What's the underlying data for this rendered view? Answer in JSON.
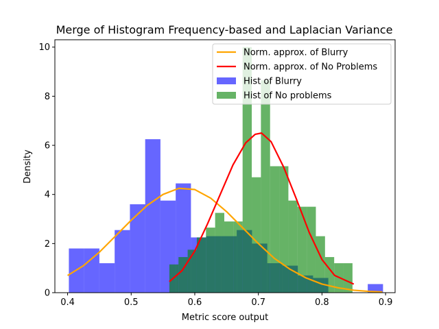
{
  "chart_data": {
    "type": "histogram",
    "title": "Merge of Histogram Frequency-based and Laplacian Variance",
    "xlabel": "Metric score output",
    "ylabel": "Density",
    "xlim": [
      0.38,
      0.915
    ],
    "ylim": [
      0,
      10.3
    ],
    "xticks": [
      0.4,
      0.5,
      0.6,
      0.7,
      0.8,
      0.9
    ],
    "yticks": [
      0,
      2,
      4,
      6,
      8,
      10
    ],
    "grid": false,
    "legend_placement": "top-right",
    "histograms": [
      {
        "name": "Hist of Blurry",
        "color": "#0000ff",
        "opacity": 0.6,
        "bin_width": 0.024,
        "bins": [
          {
            "x": 0.402,
            "h": 1.8
          },
          {
            "x": 0.426,
            "h": 1.8
          },
          {
            "x": 0.45,
            "h": 1.2
          },
          {
            "x": 0.474,
            "h": 2.55
          },
          {
            "x": 0.498,
            "h": 3.6
          },
          {
            "x": 0.522,
            "h": 6.25
          },
          {
            "x": 0.546,
            "h": 3.75
          },
          {
            "x": 0.57,
            "h": 4.45
          },
          {
            "x": 0.594,
            "h": 2.25
          },
          {
            "x": 0.618,
            "h": 2.3
          },
          {
            "x": 0.642,
            "h": 2.3
          },
          {
            "x": 0.666,
            "h": 2.55
          },
          {
            "x": 0.69,
            "h": 2.0
          },
          {
            "x": 0.714,
            "h": 1.2
          },
          {
            "x": 0.738,
            "h": 1.1
          },
          {
            "x": 0.762,
            "h": 0.7
          },
          {
            "x": 0.786,
            "h": 0.6
          },
          {
            "x": 0.81,
            "h": 0.0
          },
          {
            "x": 0.834,
            "h": 0.0
          },
          {
            "x": 0.858,
            "h": 0.0
          },
          {
            "x": 0.872,
            "h": 0.35
          }
        ]
      },
      {
        "name": "Hist of No problems",
        "color": "#008000",
        "opacity": 0.6,
        "bin_width": 0.0144,
        "bins": [
          {
            "x": 0.56,
            "h": 1.15
          },
          {
            "x": 0.5744,
            "h": 1.45
          },
          {
            "x": 0.5888,
            "h": 1.75
          },
          {
            "x": 0.6032,
            "h": 2.25
          },
          {
            "x": 0.6176,
            "h": 2.65
          },
          {
            "x": 0.632,
            "h": 3.25
          },
          {
            "x": 0.6464,
            "h": 2.9
          },
          {
            "x": 0.6608,
            "h": 2.9
          },
          {
            "x": 0.6752,
            "h": 10.0
          },
          {
            "x": 0.6896,
            "h": 4.7
          },
          {
            "x": 0.704,
            "h": 8.65
          },
          {
            "x": 0.7184,
            "h": 5.15
          },
          {
            "x": 0.7328,
            "h": 5.15
          },
          {
            "x": 0.7472,
            "h": 3.75
          },
          {
            "x": 0.7616,
            "h": 3.5
          },
          {
            "x": 0.776,
            "h": 3.5
          },
          {
            "x": 0.7904,
            "h": 2.3
          },
          {
            "x": 0.8048,
            "h": 1.45
          },
          {
            "x": 0.8192,
            "h": 1.2
          },
          {
            "x": 0.8336,
            "h": 1.2
          }
        ]
      }
    ],
    "series": [
      {
        "name": "Norm. approx. of Blurry",
        "color": "#ffa500",
        "x": [
          0.4,
          0.425,
          0.45,
          0.475,
          0.5,
          0.525,
          0.55,
          0.575,
          0.6,
          0.625,
          0.65,
          0.675,
          0.7,
          0.725,
          0.75,
          0.775,
          0.8,
          0.825,
          0.85,
          0.875,
          0.895
        ],
        "values": [
          0.7,
          1.1,
          1.65,
          2.3,
          2.95,
          3.55,
          4.0,
          4.25,
          4.2,
          3.85,
          3.3,
          2.65,
          2.0,
          1.4,
          0.95,
          0.6,
          0.35,
          0.2,
          0.1,
          0.05,
          0.03
        ]
      },
      {
        "name": "Norm. approx. of No Problems",
        "color": "#ff0000",
        "x": [
          0.56,
          0.58,
          0.6,
          0.62,
          0.64,
          0.66,
          0.68,
          0.695,
          0.705,
          0.72,
          0.74,
          0.76,
          0.78,
          0.8,
          0.82,
          0.85
        ],
        "values": [
          0.45,
          0.9,
          1.7,
          2.8,
          4.0,
          5.2,
          6.1,
          6.45,
          6.5,
          6.15,
          5.1,
          3.8,
          2.45,
          1.35,
          0.7,
          0.35
        ]
      }
    ],
    "legend": [
      {
        "label": "Norm. approx. of Blurry",
        "kind": "line",
        "color": "#ffa500"
      },
      {
        "label": "Norm. approx. of No Problems",
        "kind": "line",
        "color": "#ff0000"
      },
      {
        "label": "Hist of Blurry",
        "kind": "patch",
        "color": "#0000ff",
        "opacity": 0.6
      },
      {
        "label": "Hist of No problems",
        "kind": "patch",
        "color": "#008000",
        "opacity": 0.6
      }
    ]
  }
}
